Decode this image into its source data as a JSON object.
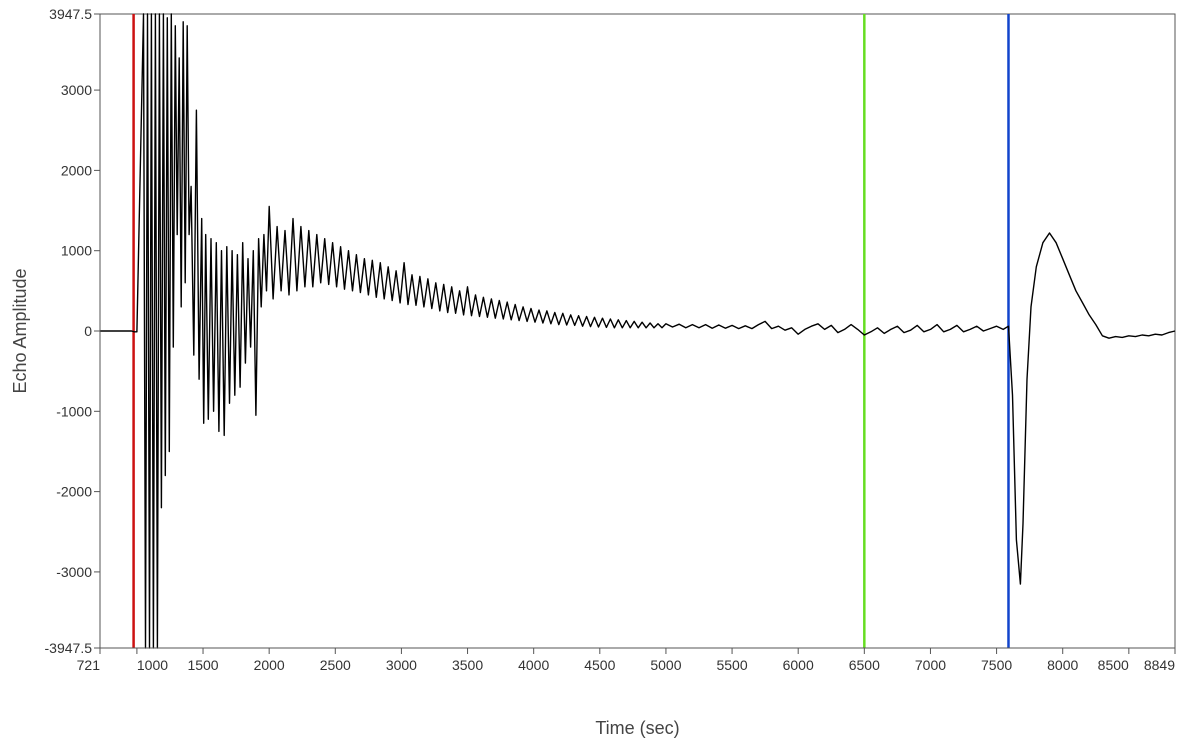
{
  "chart_data": {
    "type": "line",
    "title": "",
    "xlabel": "Time (sec)",
    "ylabel": "Echo Amplitude",
    "xlim": [
      721,
      8849
    ],
    "ylim": [
      -3947.5,
      3947.5
    ],
    "x_ticks": [
      721,
      1000,
      1500,
      2000,
      2500,
      3000,
      3500,
      4000,
      4500,
      5000,
      5500,
      6000,
      6500,
      7000,
      7500,
      8000,
      8500,
      8849
    ],
    "x_tick_labels": [
      "721",
      "1000",
      "1500",
      "2000",
      "2500",
      "3000",
      "3500",
      "4000",
      "4500",
      "5000",
      "5500",
      "6000",
      "6500",
      "7000",
      "7500",
      "8000",
      "8500",
      "8849"
    ],
    "y_ticks": [
      -3947.5,
      -3000,
      -2000,
      -1000,
      0,
      1000,
      2000,
      3000,
      3947.5
    ],
    "y_tick_labels": [
      "-3947.5",
      "-3000",
      "-2000",
      "-1000",
      "0",
      "1000",
      "2000",
      "3000",
      "3947.5"
    ],
    "grid": false,
    "legend": "none",
    "line_color": "#000000",
    "markers": [
      {
        "x": 975,
        "color": "#cc1111"
      },
      {
        "x": 6500,
        "color": "#66dd22"
      },
      {
        "x": 7590,
        "color": "#1144cc"
      }
    ],
    "series": [
      {
        "values": [
          [
            721,
            0
          ],
          [
            960,
            0
          ],
          [
            980,
            -10
          ],
          [
            1000,
            -10
          ],
          [
            1050,
            3947
          ],
          [
            1065,
            -3947
          ],
          [
            1080,
            3947
          ],
          [
            1095,
            -3947
          ],
          [
            1110,
            3947
          ],
          [
            1125,
            -3947
          ],
          [
            1140,
            3947
          ],
          [
            1155,
            -3947
          ],
          [
            1170,
            3947
          ],
          [
            1185,
            -2200
          ],
          [
            1200,
            3947
          ],
          [
            1215,
            -1800
          ],
          [
            1230,
            3900
          ],
          [
            1245,
            -1500
          ],
          [
            1260,
            3947
          ],
          [
            1275,
            -200
          ],
          [
            1290,
            3800
          ],
          [
            1305,
            1200
          ],
          [
            1320,
            3400
          ],
          [
            1335,
            300
          ],
          [
            1350,
            3850
          ],
          [
            1365,
            600
          ],
          [
            1380,
            3800
          ],
          [
            1395,
            1200
          ],
          [
            1410,
            1800
          ],
          [
            1430,
            -300
          ],
          [
            1450,
            2750
          ],
          [
            1470,
            -600
          ],
          [
            1490,
            1400
          ],
          [
            1505,
            -1150
          ],
          [
            1520,
            1200
          ],
          [
            1540,
            -1100
          ],
          [
            1560,
            1150
          ],
          [
            1580,
            -1000
          ],
          [
            1600,
            1100
          ],
          [
            1620,
            -1250
          ],
          [
            1640,
            1000
          ],
          [
            1660,
            -1300
          ],
          [
            1680,
            1050
          ],
          [
            1700,
            -900
          ],
          [
            1720,
            1000
          ],
          [
            1740,
            -800
          ],
          [
            1760,
            950
          ],
          [
            1780,
            -700
          ],
          [
            1800,
            1100
          ],
          [
            1820,
            -400
          ],
          [
            1840,
            900
          ],
          [
            1860,
            -200
          ],
          [
            1880,
            1000
          ],
          [
            1900,
            -1050
          ],
          [
            1920,
            1150
          ],
          [
            1940,
            300
          ],
          [
            1960,
            1200
          ],
          [
            1980,
            500
          ],
          [
            2000,
            1550
          ],
          [
            2030,
            400
          ],
          [
            2060,
            1300
          ],
          [
            2090,
            500
          ],
          [
            2120,
            1250
          ],
          [
            2150,
            450
          ],
          [
            2180,
            1400
          ],
          [
            2210,
            500
          ],
          [
            2240,
            1300
          ],
          [
            2270,
            550
          ],
          [
            2300,
            1250
          ],
          [
            2330,
            550
          ],
          [
            2360,
            1200
          ],
          [
            2390,
            600
          ],
          [
            2420,
            1150
          ],
          [
            2450,
            580
          ],
          [
            2480,
            1100
          ],
          [
            2510,
            550
          ],
          [
            2540,
            1050
          ],
          [
            2570,
            520
          ],
          [
            2600,
            1000
          ],
          [
            2630,
            500
          ],
          [
            2660,
            950
          ],
          [
            2690,
            480
          ],
          [
            2720,
            900
          ],
          [
            2750,
            450
          ],
          [
            2780,
            880
          ],
          [
            2810,
            420
          ],
          [
            2840,
            850
          ],
          [
            2870,
            400
          ],
          [
            2900,
            800
          ],
          [
            2930,
            380
          ],
          [
            2960,
            750
          ],
          [
            2990,
            350
          ],
          [
            3020,
            850
          ],
          [
            3050,
            330
          ],
          [
            3080,
            700
          ],
          [
            3110,
            320
          ],
          [
            3140,
            680
          ],
          [
            3170,
            300
          ],
          [
            3200,
            650
          ],
          [
            3230,
            280
          ],
          [
            3260,
            600
          ],
          [
            3290,
            250
          ],
          [
            3320,
            580
          ],
          [
            3350,
            230
          ],
          [
            3380,
            550
          ],
          [
            3410,
            220
          ],
          [
            3440,
            500
          ],
          [
            3470,
            200
          ],
          [
            3500,
            550
          ],
          [
            3530,
            190
          ],
          [
            3560,
            450
          ],
          [
            3590,
            180
          ],
          [
            3620,
            420
          ],
          [
            3650,
            170
          ],
          [
            3680,
            400
          ],
          [
            3710,
            160
          ],
          [
            3740,
            380
          ],
          [
            3770,
            150
          ],
          [
            3800,
            360
          ],
          [
            3830,
            140
          ],
          [
            3860,
            330
          ],
          [
            3890,
            130
          ],
          [
            3920,
            300
          ],
          [
            3950,
            120
          ],
          [
            3980,
            280
          ],
          [
            4010,
            110
          ],
          [
            4040,
            260
          ],
          [
            4070,
            100
          ],
          [
            4100,
            250
          ],
          [
            4130,
            90
          ],
          [
            4160,
            230
          ],
          [
            4190,
            80
          ],
          [
            4220,
            220
          ],
          [
            4250,
            75
          ],
          [
            4280,
            200
          ],
          [
            4310,
            70
          ],
          [
            4340,
            190
          ],
          [
            4370,
            60
          ],
          [
            4400,
            180
          ],
          [
            4430,
            55
          ],
          [
            4460,
            170
          ],
          [
            4490,
            50
          ],
          [
            4520,
            160
          ],
          [
            4550,
            45
          ],
          [
            4580,
            150
          ],
          [
            4610,
            40
          ],
          [
            4640,
            140
          ],
          [
            4670,
            40
          ],
          [
            4700,
            130
          ],
          [
            4730,
            40
          ],
          [
            4760,
            120
          ],
          [
            4790,
            40
          ],
          [
            4820,
            110
          ],
          [
            4850,
            40
          ],
          [
            4880,
            100
          ],
          [
            4910,
            40
          ],
          [
            4940,
            90
          ],
          [
            4970,
            40
          ],
          [
            5000,
            90
          ],
          [
            5050,
            50
          ],
          [
            5100,
            85
          ],
          [
            5150,
            40
          ],
          [
            5200,
            80
          ],
          [
            5250,
            40
          ],
          [
            5300,
            80
          ],
          [
            5350,
            35
          ],
          [
            5400,
            75
          ],
          [
            5450,
            35
          ],
          [
            5500,
            70
          ],
          [
            5550,
            30
          ],
          [
            5600,
            65
          ],
          [
            5650,
            30
          ],
          [
            5700,
            80
          ],
          [
            5750,
            120
          ],
          [
            5800,
            30
          ],
          [
            5850,
            60
          ],
          [
            5900,
            10
          ],
          [
            5950,
            40
          ],
          [
            6000,
            -40
          ],
          [
            6050,
            20
          ],
          [
            6100,
            60
          ],
          [
            6150,
            90
          ],
          [
            6200,
            20
          ],
          [
            6250,
            70
          ],
          [
            6300,
            -20
          ],
          [
            6350,
            20
          ],
          [
            6400,
            80
          ],
          [
            6450,
            20
          ],
          [
            6500,
            -50
          ],
          [
            6550,
            -10
          ],
          [
            6600,
            40
          ],
          [
            6650,
            -30
          ],
          [
            6700,
            20
          ],
          [
            6750,
            60
          ],
          [
            6800,
            -20
          ],
          [
            6850,
            10
          ],
          [
            6900,
            70
          ],
          [
            6950,
            -10
          ],
          [
            7000,
            20
          ],
          [
            7050,
            80
          ],
          [
            7100,
            -10
          ],
          [
            7150,
            20
          ],
          [
            7200,
            70
          ],
          [
            7250,
            -10
          ],
          [
            7300,
            20
          ],
          [
            7350,
            60
          ],
          [
            7400,
            0
          ],
          [
            7450,
            30
          ],
          [
            7500,
            60
          ],
          [
            7550,
            20
          ],
          [
            7590,
            60
          ],
          [
            7620,
            -800
          ],
          [
            7650,
            -2600
          ],
          [
            7680,
            -3150
          ],
          [
            7700,
            -2400
          ],
          [
            7730,
            -600
          ],
          [
            7760,
            300
          ],
          [
            7800,
            800
          ],
          [
            7850,
            1100
          ],
          [
            7900,
            1220
          ],
          [
            7950,
            1100
          ],
          [
            8000,
            900
          ],
          [
            8050,
            700
          ],
          [
            8100,
            500
          ],
          [
            8150,
            350
          ],
          [
            8200,
            200
          ],
          [
            8250,
            80
          ],
          [
            8300,
            -60
          ],
          [
            8350,
            -90
          ],
          [
            8400,
            -70
          ],
          [
            8450,
            -80
          ],
          [
            8500,
            -60
          ],
          [
            8550,
            -70
          ],
          [
            8600,
            -50
          ],
          [
            8650,
            -60
          ],
          [
            8700,
            -40
          ],
          [
            8750,
            -50
          ],
          [
            8800,
            -20
          ],
          [
            8849,
            0
          ]
        ]
      }
    ]
  }
}
